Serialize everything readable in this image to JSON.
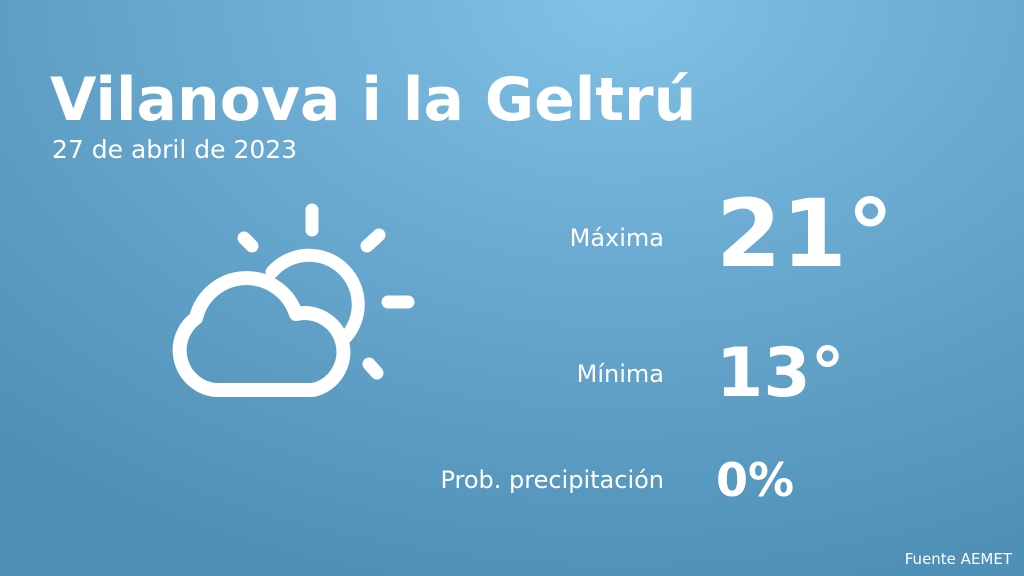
{
  "city": "Vilanova i la Geltrú",
  "date": "27 de abril de 2023",
  "weather_icon": "partly-cloudy-icon",
  "stats": {
    "max_label": "Máxima",
    "max_value": "21°",
    "min_label": "Mínima",
    "min_value": "13°",
    "precip_label": "Prob. precipitación",
    "precip_value": "0%"
  },
  "source": "Fuente AEMET"
}
